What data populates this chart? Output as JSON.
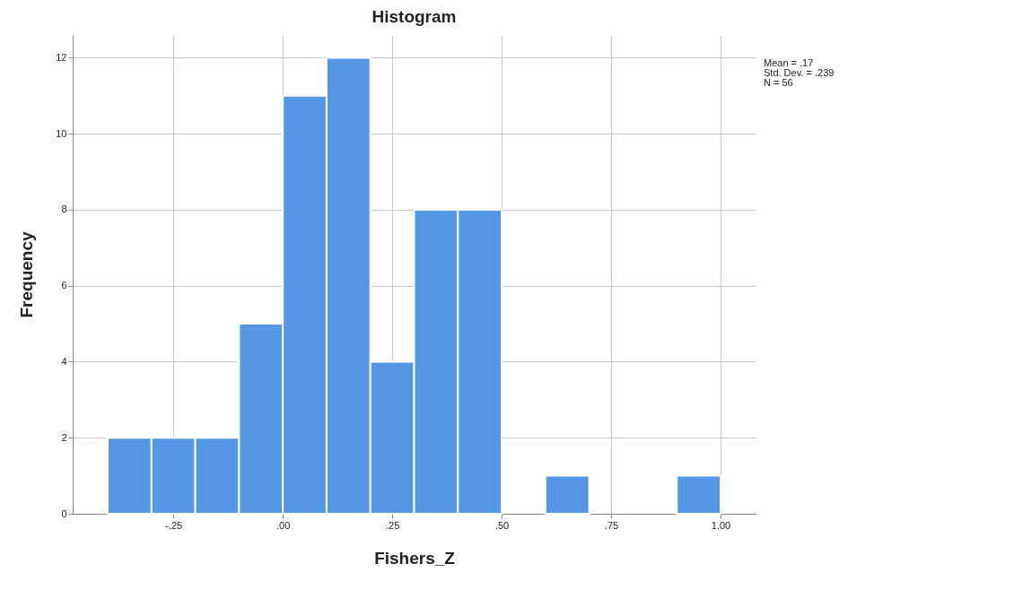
{
  "chart_data": {
    "type": "histogram",
    "title": "Histogram",
    "xlabel": "Fishers_Z",
    "ylabel": "Frequency",
    "bins": [
      -0.4,
      -0.3,
      -0.2,
      -0.1,
      0,
      0.1,
      0.2,
      0.3,
      0.4,
      0.5,
      0.6,
      0.7,
      0.8,
      0.9,
      1.0
    ],
    "values": [
      2,
      2,
      2,
      5,
      11,
      12,
      4,
      8,
      8,
      0,
      1,
      0,
      0,
      1
    ],
    "color": "#5597e4",
    "xlim": [
      -0.48,
      1.08
    ],
    "xticks": [
      {
        "value": -0.25,
        "label": "-.25"
      },
      {
        "value": 0,
        "label": ".00"
      },
      {
        "value": 0.25,
        "label": ".25"
      },
      {
        "value": 0.5,
        "label": ".50"
      },
      {
        "value": 0.75,
        "label": ".75"
      },
      {
        "value": 1,
        "label": "1.00"
      }
    ],
    "ylim": [
      0,
      12.6
    ],
    "yticks": [
      0,
      2,
      4,
      6,
      8,
      10,
      12
    ],
    "grid": true,
    "annotations": [
      "Mean = .17",
      "Std. Dev. = .239",
      "N = 56"
    ]
  }
}
